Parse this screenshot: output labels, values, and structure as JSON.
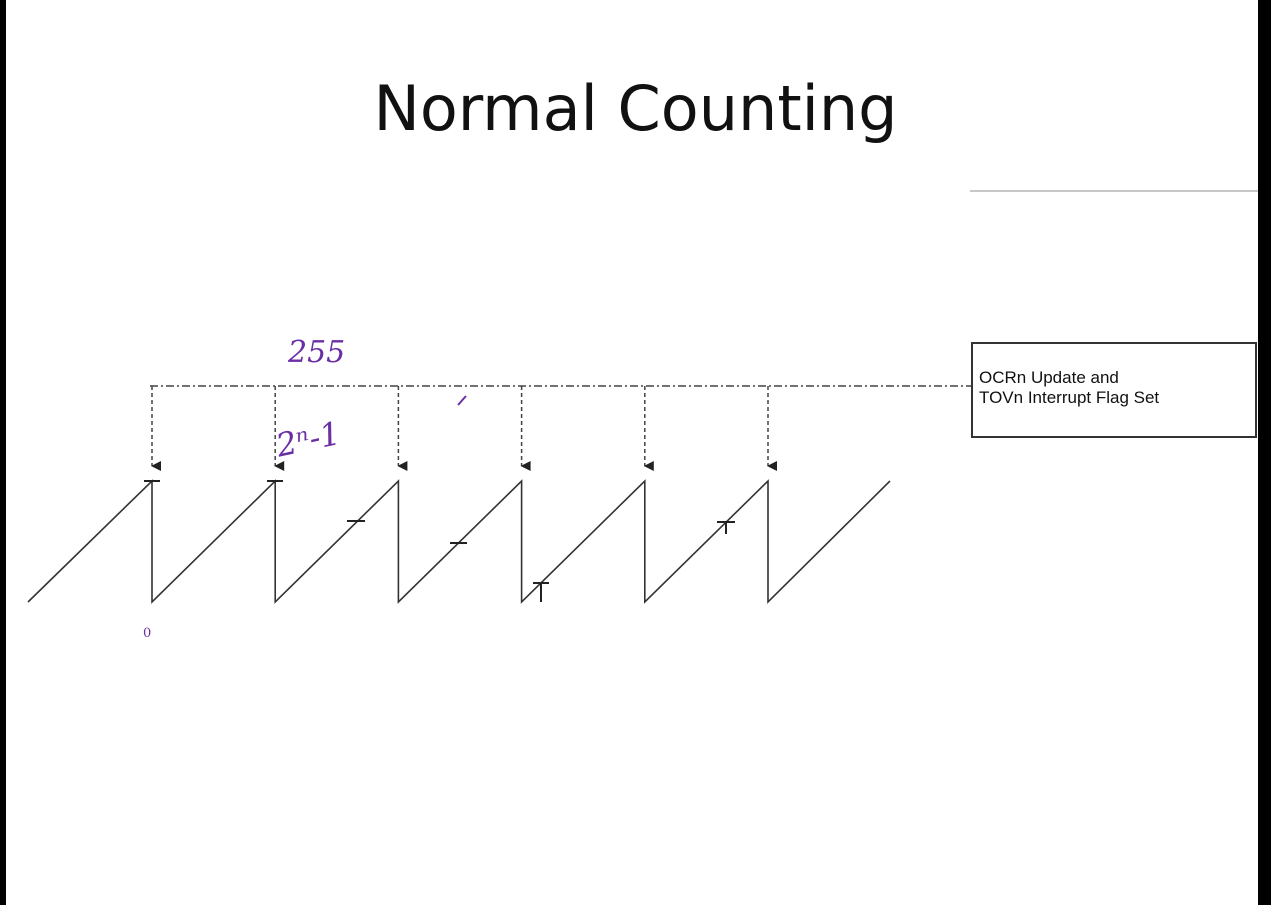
{
  "slide": {
    "title": "Normal Counting"
  },
  "callout": {
    "line1": "OCRn Update and",
    "line2": "TOVn Interrupt Flag Set"
  },
  "annotations": {
    "max_value": "255",
    "formula": "2ⁿ-1",
    "zero": "0"
  },
  "colors": {
    "ink": "#6a2fa5",
    "waveform": "#333333",
    "background": "#ffffff"
  },
  "waveform": {
    "type": "sawtooth",
    "periods": 6,
    "rising_edges": 7,
    "overflow_markers": 6
  }
}
